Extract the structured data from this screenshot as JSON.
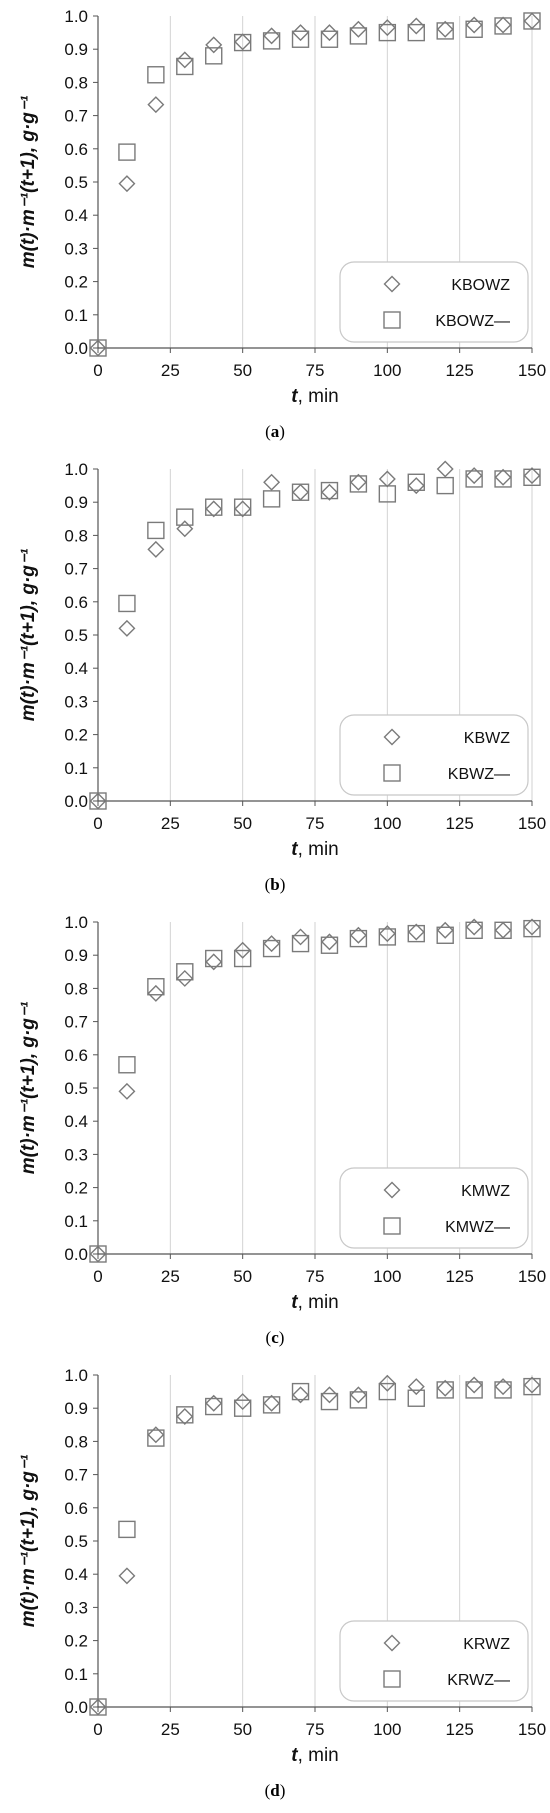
{
  "chart_data": [
    {
      "type": "scatter",
      "panel_label": "a",
      "xlabel_var": "t",
      "xlabel_unit": ", min",
      "ylabel": "m(t)·m⁻¹(t+1), g·g⁻¹",
      "xlim": [
        0,
        150
      ],
      "ylim": [
        0.0,
        1.0
      ],
      "xticks": [
        "0",
        "25",
        "50",
        "75",
        "100",
        "125",
        "150"
      ],
      "yticks": [
        "0.0",
        "0.1",
        "0.2",
        "0.3",
        "0.4",
        "0.5",
        "0.6",
        "0.7",
        "0.8",
        "0.9",
        "1.0"
      ],
      "grid": "vertical",
      "legend_position": "bottom-right",
      "series": [
        {
          "name": "KBOWZ",
          "marker": "diamond",
          "x": [
            0,
            10,
            20,
            30,
            40,
            50,
            60,
            70,
            80,
            90,
            100,
            110,
            120,
            130,
            140,
            150
          ],
          "y": [
            0.0,
            0.495,
            0.733,
            0.868,
            0.913,
            0.922,
            0.94,
            0.95,
            0.95,
            0.96,
            0.965,
            0.97,
            0.96,
            0.973,
            0.973,
            0.985
          ]
        },
        {
          "name": "KBOWZ—",
          "marker": "square",
          "x": [
            0,
            10,
            20,
            30,
            40,
            50,
            60,
            70,
            80,
            90,
            100,
            110,
            120,
            130,
            140,
            150
          ],
          "y": [
            0.0,
            0.59,
            0.823,
            0.848,
            0.88,
            0.92,
            0.925,
            0.93,
            0.93,
            0.94,
            0.95,
            0.95,
            0.955,
            0.96,
            0.97,
            0.985
          ]
        }
      ]
    },
    {
      "type": "scatter",
      "panel_label": "b",
      "xlabel_var": "t",
      "xlabel_unit": ", min",
      "ylabel": "m(t)·m⁻¹(t+1), g·g⁻¹",
      "xlim": [
        0,
        150
      ],
      "ylim": [
        0.0,
        1.0
      ],
      "xticks": [
        "0",
        "25",
        "50",
        "75",
        "100",
        "125",
        "150"
      ],
      "yticks": [
        "0.0",
        "0.1",
        "0.2",
        "0.3",
        "0.4",
        "0.5",
        "0.6",
        "0.7",
        "0.8",
        "0.9",
        "1.0"
      ],
      "grid": "vertical",
      "legend_position": "bottom-right",
      "series": [
        {
          "name": "KBWZ",
          "marker": "diamond",
          "x": [
            0,
            10,
            20,
            30,
            40,
            50,
            60,
            70,
            80,
            90,
            100,
            110,
            120,
            130,
            140,
            150
          ],
          "y": [
            0.0,
            0.52,
            0.758,
            0.82,
            0.88,
            0.88,
            0.96,
            0.93,
            0.93,
            0.96,
            0.97,
            0.95,
            1.0,
            0.98,
            0.975,
            0.98
          ]
        },
        {
          "name": "KBWZ—",
          "marker": "square",
          "x": [
            0,
            10,
            20,
            30,
            40,
            50,
            60,
            70,
            80,
            90,
            100,
            110,
            120,
            130,
            140,
            150
          ],
          "y": [
            0.0,
            0.595,
            0.815,
            0.855,
            0.885,
            0.885,
            0.91,
            0.93,
            0.935,
            0.955,
            0.925,
            0.96,
            0.95,
            0.97,
            0.97,
            0.975
          ]
        }
      ]
    },
    {
      "type": "scatter",
      "panel_label": "c",
      "xlabel_var": "t",
      "xlabel_unit": ", min",
      "ylabel": "m(t)·m⁻¹(t+1), g·g⁻¹",
      "xlim": [
        0,
        150
      ],
      "ylim": [
        0.0,
        1.0
      ],
      "xticks": [
        "0",
        "25",
        "50",
        "75",
        "100",
        "125",
        "150"
      ],
      "yticks": [
        "0.0",
        "0.1",
        "0.2",
        "0.3",
        "0.4",
        "0.5",
        "0.6",
        "0.7",
        "0.8",
        "0.9",
        "1.0"
      ],
      "grid": "vertical",
      "legend_position": "bottom-right",
      "series": [
        {
          "name": "KMWZ",
          "marker": "diamond",
          "x": [
            0,
            10,
            20,
            30,
            40,
            50,
            60,
            70,
            80,
            90,
            100,
            110,
            120,
            130,
            140,
            150
          ],
          "y": [
            0.0,
            0.49,
            0.785,
            0.83,
            0.88,
            0.915,
            0.935,
            0.955,
            0.94,
            0.96,
            0.965,
            0.97,
            0.975,
            0.985,
            0.975,
            0.985
          ]
        },
        {
          "name": "KMWZ—",
          "marker": "square",
          "x": [
            0,
            10,
            20,
            30,
            40,
            50,
            60,
            70,
            80,
            90,
            100,
            110,
            120,
            130,
            140,
            150
          ],
          "y": [
            0.0,
            0.57,
            0.805,
            0.85,
            0.89,
            0.89,
            0.92,
            0.935,
            0.93,
            0.95,
            0.955,
            0.965,
            0.96,
            0.975,
            0.975,
            0.98
          ]
        }
      ]
    },
    {
      "type": "scatter",
      "panel_label": "d",
      "xlabel_var": "t",
      "xlabel_unit": ", min",
      "ylabel": "m(t)·m⁻¹(t+1), g·g⁻¹",
      "xlim": [
        0,
        150
      ],
      "ylim": [
        0.0,
        1.0
      ],
      "xticks": [
        "0",
        "25",
        "50",
        "75",
        "100",
        "125",
        "150"
      ],
      "yticks": [
        "0.0",
        "0.1",
        "0.2",
        "0.3",
        "0.4",
        "0.5",
        "0.6",
        "0.7",
        "0.8",
        "0.9",
        "1.0"
      ],
      "grid": "vertical",
      "legend_position": "bottom-right",
      "series": [
        {
          "name": "KRWZ",
          "marker": "diamond",
          "x": [
            0,
            10,
            20,
            30,
            40,
            50,
            60,
            70,
            80,
            90,
            100,
            110,
            120,
            130,
            140,
            150
          ],
          "y": [
            0.0,
            0.395,
            0.82,
            0.875,
            0.915,
            0.92,
            0.915,
            0.94,
            0.94,
            0.94,
            0.975,
            0.965,
            0.96,
            0.97,
            0.965,
            0.97
          ]
        },
        {
          "name": "KRWZ—",
          "marker": "square",
          "x": [
            0,
            10,
            20,
            30,
            40,
            50,
            60,
            70,
            80,
            90,
            100,
            110,
            120,
            130,
            140,
            150
          ],
          "y": [
            0.0,
            0.535,
            0.81,
            0.88,
            0.905,
            0.9,
            0.91,
            0.95,
            0.92,
            0.925,
            0.95,
            0.93,
            0.955,
            0.955,
            0.955,
            0.965
          ]
        }
      ]
    }
  ]
}
